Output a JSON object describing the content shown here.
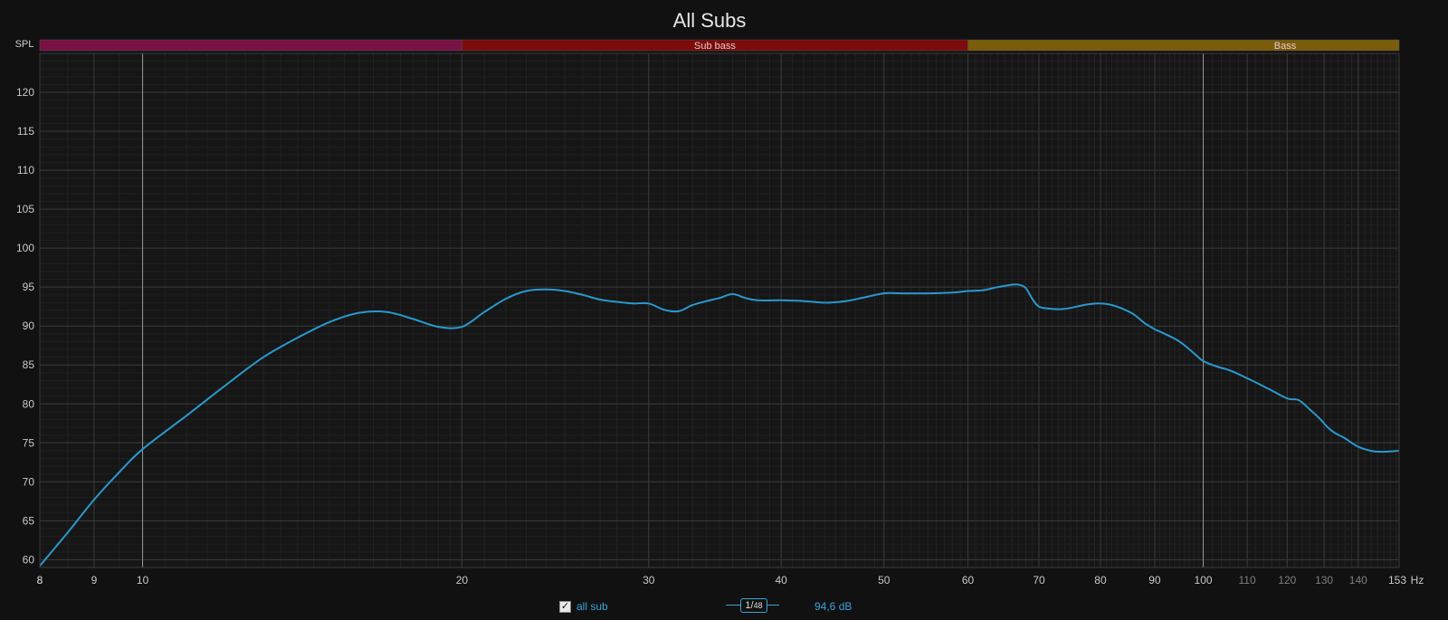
{
  "chart_data": {
    "type": "line",
    "title": "All Subs",
    "ylabel": "SPL",
    "xunit": "Hz",
    "xscale": "log",
    "xlim": [
      8,
      153
    ],
    "ylim": [
      59,
      125
    ],
    "grid": true,
    "x_ticks": [
      {
        "v": 8,
        "label": "8"
      },
      {
        "v": 9,
        "label": "9"
      },
      {
        "v": 10,
        "label": "10"
      },
      {
        "v": 20,
        "label": "20"
      },
      {
        "v": 30,
        "label": "30"
      },
      {
        "v": 40,
        "label": "40"
      },
      {
        "v": 50,
        "label": "50"
      },
      {
        "v": 60,
        "label": "60"
      },
      {
        "v": 70,
        "label": "70"
      },
      {
        "v": 80,
        "label": "80"
      },
      {
        "v": 90,
        "label": "90"
      },
      {
        "v": 100,
        "label": "100"
      },
      {
        "v": 110,
        "label": "110"
      },
      {
        "v": 120,
        "label": "120"
      },
      {
        "v": 130,
        "label": "130"
      },
      {
        "v": 140,
        "label": "140"
      },
      {
        "v": 153,
        "label": "153"
      }
    ],
    "y_ticks": [
      60,
      65,
      70,
      75,
      80,
      85,
      90,
      95,
      100,
      105,
      110,
      115,
      120
    ],
    "bands": [
      {
        "label": "",
        "from": 8,
        "to": 20,
        "color": "#7a1145"
      },
      {
        "label": "Sub bass",
        "from": 20,
        "to": 60,
        "color": "#7c0b0b"
      },
      {
        "label": "Bass",
        "from": 60,
        "to": 153,
        "color": "#7a5c0b"
      }
    ],
    "series": [
      {
        "name": "all sub",
        "color": "#2a98cc",
        "x": [
          8,
          8.5,
          9,
          9.5,
          10,
          11,
          12,
          13,
          14,
          15,
          16,
          17,
          18,
          19,
          20,
          21,
          22,
          23,
          24,
          25,
          26,
          27,
          28,
          29,
          30,
          31,
          32,
          33,
          34,
          35,
          36,
          37,
          38,
          40,
          42,
          44,
          46,
          48,
          50,
          52,
          55,
          58,
          60,
          62,
          64,
          66,
          67,
          68,
          69,
          70,
          72,
          74,
          76,
          78,
          80,
          82,
          84,
          86,
          88,
          90,
          92,
          95,
          98,
          100,
          103,
          106,
          110,
          115,
          120,
          123,
          126,
          129,
          131,
          133,
          136,
          140,
          145,
          150,
          153
        ],
        "y": [
          59.2,
          63.5,
          67.7,
          71.2,
          74.2,
          78.5,
          82.5,
          86,
          88.5,
          90.5,
          91.7,
          91.8,
          90.9,
          89.9,
          89.9,
          91.8,
          93.5,
          94.5,
          94.7,
          94.5,
          94,
          93.4,
          93.1,
          92.9,
          92.9,
          92.1,
          91.9,
          92.7,
          93.2,
          93.6,
          94.1,
          93.6,
          93.3,
          93.3,
          93.2,
          93,
          93.2,
          93.7,
          94.2,
          94.2,
          94.2,
          94.3,
          94.5,
          94.6,
          95,
          95.3,
          95.3,
          94.9,
          93.5,
          92.5,
          92.2,
          92.2,
          92.5,
          92.8,
          92.9,
          92.7,
          92.2,
          91.5,
          90.4,
          89.6,
          89,
          88,
          86.5,
          85.5,
          84.8,
          84.3,
          83.3,
          82,
          80.7,
          80.5,
          79.3,
          78,
          77,
          76.3,
          75.6,
          74.5,
          73.9,
          73.9,
          74
        ]
      }
    ]
  },
  "legend": {
    "series_label": "all sub",
    "smoothing_numerator": "1/",
    "smoothing_denominator": "48",
    "readout": "94,6 dB"
  }
}
